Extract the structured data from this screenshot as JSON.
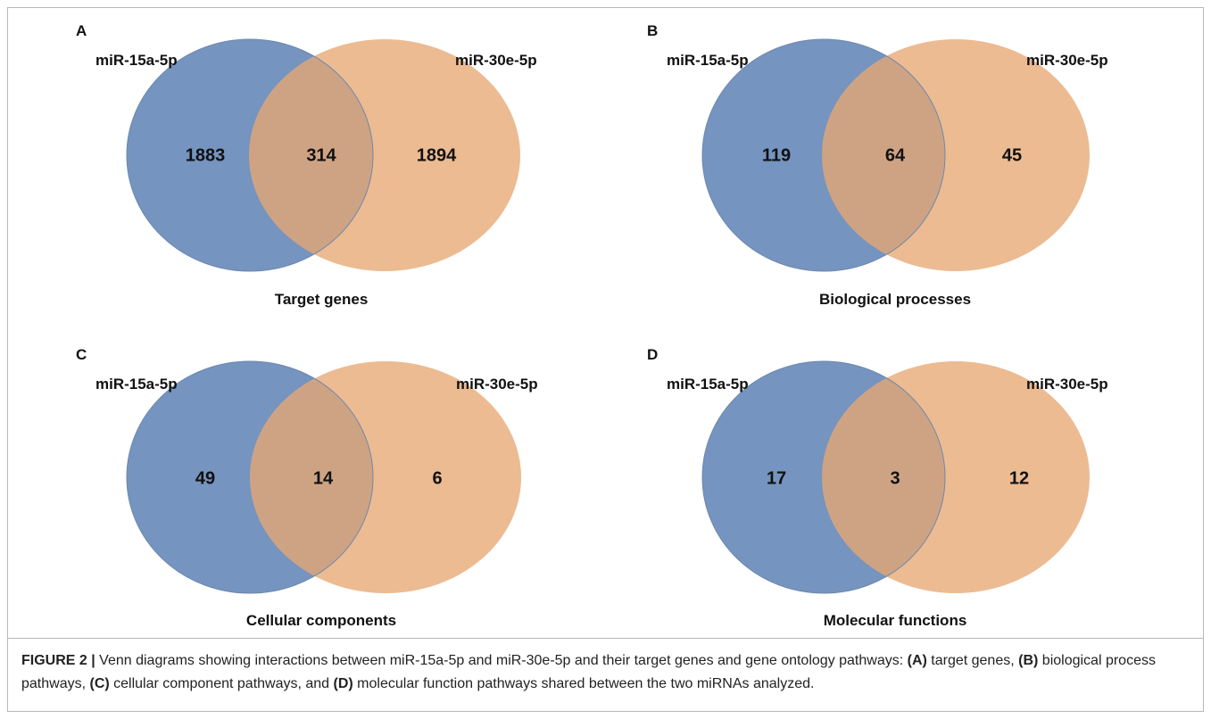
{
  "figure": {
    "panels": [
      {
        "label": "A",
        "left_set": "miR-15a-5p",
        "right_set": "miR-30e-5p",
        "left_only": "1883",
        "overlap": "314",
        "right_only": "1894",
        "title": "Target genes"
      },
      {
        "label": "B",
        "left_set": "miR-15a-5p",
        "right_set": "miR-30e-5p",
        "left_only": "119",
        "overlap": "64",
        "right_only": "45",
        "title": "Biological processes"
      },
      {
        "label": "C",
        "left_set": "miR-15a-5p",
        "right_set": "miR-30e-5p",
        "left_only": "49",
        "overlap": "14",
        "right_only": "6",
        "title": "Cellular components"
      },
      {
        "label": "D",
        "left_set": "miR-15a-5p",
        "right_set": "miR-30e-5p",
        "left_only": "17",
        "overlap": "3",
        "right_only": "12",
        "title": "Molecular functions"
      }
    ],
    "colors": {
      "left": "#7594bf",
      "right": "#e7a873",
      "overlap": "#b08262"
    }
  },
  "caption": {
    "figure_label": "FIGURE 2 |",
    "part1": " Venn diagrams showing interactions between miR-15a-5p and miR-30e-5p and their target genes and gene ontology pathways: ",
    "tagA": "(A)",
    "part2": " target genes, ",
    "tagB": "(B)",
    "part3": " biological process pathways, ",
    "tagC": "(C)",
    "part4": " cellular component pathways, and ",
    "tagD": "(D)",
    "part5": " molecular function pathways shared between the two miRNAs analyzed."
  }
}
